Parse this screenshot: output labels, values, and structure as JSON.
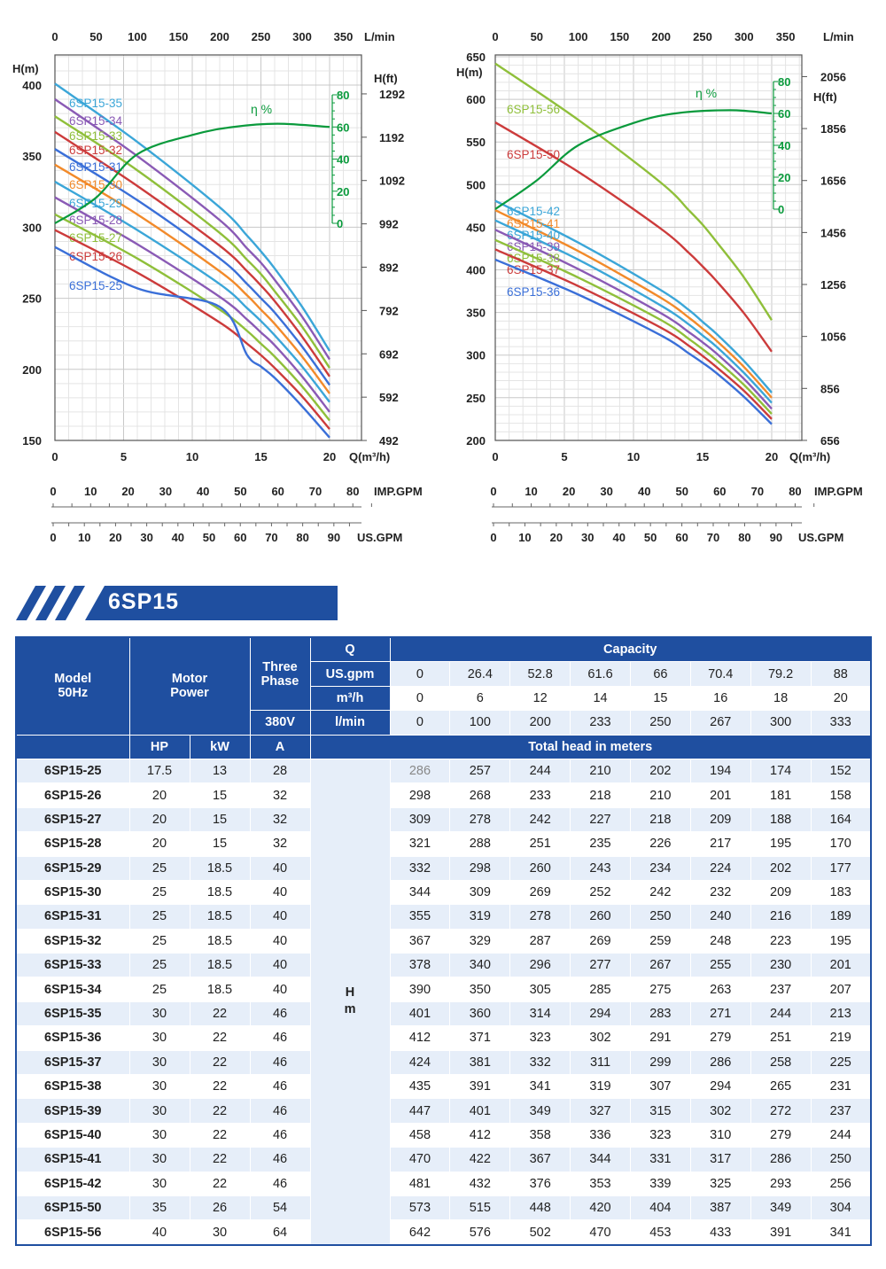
{
  "series_title": "6SP15",
  "chart_data": [
    {
      "type": "line",
      "xlabel": "Q(m³/h)",
      "ylabel": "H(m)",
      "ylabel_right": "H(ft)",
      "top_axis_label": "L/min",
      "imp_label": "IMP.GPM",
      "us_label": "US.GPM",
      "eff_label": "η %",
      "xlim": [
        0,
        22.3
      ],
      "ylim": [
        150,
        421
      ],
      "x_ticks": [
        "0",
        "5",
        "10",
        "15",
        "20"
      ],
      "y_ticks": [
        "150",
        "200",
        "250",
        "300",
        "350",
        "400"
      ],
      "y_right_ticks": [
        "492",
        "592",
        "692",
        "792",
        "892",
        "992",
        "1092",
        "1192",
        "1292"
      ],
      "top_ticks": [
        "0",
        "50",
        "100",
        "150",
        "200",
        "250",
        "300",
        "350"
      ],
      "imp_ticks": [
        "0",
        "10",
        "20",
        "30",
        "40",
        "50",
        "60",
        "70",
        "80"
      ],
      "us_ticks": [
        "0",
        "10",
        "20",
        "30",
        "40",
        "50",
        "60",
        "70",
        "80",
        "90"
      ],
      "eff_ticks": [
        "0",
        "20",
        "40",
        "60",
        "80"
      ],
      "grid": true,
      "x": [
        0,
        6,
        12,
        14,
        15,
        16,
        18,
        20
      ],
      "series": [
        {
          "name": "6SP15-35",
          "color": "#3ba6d8",
          "values": [
            401,
            360,
            314,
            294,
            283,
            271,
            244,
            213
          ]
        },
        {
          "name": "6SP15-34",
          "color": "#8a5ab5",
          "values": [
            390,
            350,
            305,
            285,
            275,
            263,
            237,
            207
          ]
        },
        {
          "name": "6SP15-33",
          "color": "#8fbf3a",
          "values": [
            378,
            340,
            296,
            277,
            267,
            255,
            230,
            201
          ]
        },
        {
          "name": "6SP15-32",
          "color": "#cc3b3b",
          "values": [
            367,
            329,
            287,
            269,
            259,
            248,
            223,
            195
          ]
        },
        {
          "name": "6SP15-31",
          "color": "#3a6fd8",
          "values": [
            355,
            319,
            278,
            260,
            250,
            240,
            216,
            189
          ]
        },
        {
          "name": "6SP15-30",
          "color": "#f28a2a",
          "values": [
            344,
            309,
            269,
            252,
            242,
            232,
            209,
            183
          ]
        },
        {
          "name": "6SP15-29",
          "color": "#3ba6d8",
          "values": [
            332,
            298,
            260,
            243,
            234,
            224,
            202,
            177
          ]
        },
        {
          "name": "6SP15-28",
          "color": "#8a5ab5",
          "values": [
            321,
            288,
            251,
            235,
            226,
            217,
            195,
            170
          ]
        },
        {
          "name": "6SP15-27",
          "color": "#8fbf3a",
          "values": [
            309,
            278,
            242,
            227,
            218,
            209,
            188,
            164
          ]
        },
        {
          "name": "6SP15-26",
          "color": "#cc3b3b",
          "values": [
            298,
            268,
            233,
            218,
            210,
            201,
            181,
            158
          ]
        },
        {
          "name": "6SP15-25",
          "color": "#3a6fd8",
          "values": [
            286,
            257,
            244,
            210,
            202,
            194,
            174,
            152
          ]
        }
      ],
      "efficiency": {
        "color": "#0a9a3c",
        "x": [
          0,
          3,
          6,
          10,
          13,
          16.2,
          20
        ],
        "values": [
          0,
          16,
          43,
          55,
          60,
          62,
          60
        ]
      }
    },
    {
      "type": "line",
      "xlabel": "Q(m³/h)",
      "ylabel": "H(m)",
      "ylabel_right": "H(ft)",
      "top_axis_label": "L/min",
      "imp_label": "IMP.GPM",
      "us_label": "US.GPM",
      "eff_label": "η %",
      "xlim": [
        0,
        22.3
      ],
      "ylim": [
        200,
        650
      ],
      "x_ticks": [
        "0",
        "5",
        "10",
        "15",
        "20"
      ],
      "y_ticks": [
        "200",
        "250",
        "300",
        "350",
        "400",
        "450",
        "500",
        "550",
        "600",
        "650"
      ],
      "y_right_ticks": [
        "656",
        "856",
        "1056",
        "1256",
        "1456",
        "1656",
        "1856",
        "2056"
      ],
      "top_ticks": [
        "0",
        "50",
        "100",
        "150",
        "200",
        "250",
        "300",
        "350"
      ],
      "imp_ticks": [
        "0",
        "10",
        "20",
        "30",
        "40",
        "50",
        "60",
        "70",
        "80"
      ],
      "us_ticks": [
        "0",
        "10",
        "20",
        "30",
        "40",
        "50",
        "60",
        "70",
        "80",
        "90"
      ],
      "eff_ticks": [
        "0",
        "20",
        "40",
        "60",
        "80"
      ],
      "grid": true,
      "x": [
        0,
        6,
        12,
        14,
        15,
        16,
        18,
        20
      ],
      "series": [
        {
          "name": "6SP15-56",
          "color": "#8fbf3a",
          "values": [
            642,
            576,
            502,
            470,
            453,
            433,
            391,
            341
          ]
        },
        {
          "name": "6SP15-50",
          "color": "#cc3b3b",
          "values": [
            573,
            515,
            448,
            420,
            404,
            387,
            349,
            304
          ]
        },
        {
          "name": "6SP15-42",
          "color": "#3ba6d8",
          "values": [
            481,
            432,
            376,
            353,
            339,
            325,
            293,
            256
          ]
        },
        {
          "name": "6SP15-41",
          "color": "#f28a2a",
          "values": [
            470,
            422,
            367,
            344,
            331,
            317,
            286,
            250
          ]
        },
        {
          "name": "6SP15-40",
          "color": "#3ba6d8",
          "values": [
            458,
            412,
            358,
            336,
            323,
            310,
            279,
            244
          ]
        },
        {
          "name": "6SP15-39",
          "color": "#8a5ab5",
          "values": [
            447,
            401,
            349,
            327,
            315,
            302,
            272,
            237
          ]
        },
        {
          "name": "6SP15-38",
          "color": "#8fbf3a",
          "values": [
            435,
            391,
            341,
            319,
            307,
            294,
            265,
            231
          ]
        },
        {
          "name": "6SP15-37",
          "color": "#cc3b3b",
          "values": [
            424,
            381,
            332,
            311,
            299,
            286,
            258,
            225
          ]
        },
        {
          "name": "6SP15-36",
          "color": "#3a6fd8",
          "values": [
            412,
            371,
            323,
            302,
            291,
            279,
            251,
            219
          ]
        }
      ],
      "efficiency": {
        "color": "#0a9a3c",
        "x": [
          0,
          3,
          6,
          10,
          13,
          17,
          20
        ],
        "values": [
          0,
          18,
          40,
          54,
          60,
          62,
          60
        ]
      }
    }
  ],
  "table": {
    "brand_color": "#1f4fa0",
    "model_header": [
      "Model",
      "50Hz"
    ],
    "motor_header": [
      "Motor",
      "Power"
    ],
    "phase_header": [
      "Three",
      "Phase"
    ],
    "q_label": "Q",
    "capacity_label": "Capacity",
    "voltage": "380V",
    "units": [
      "US.gpm",
      "m³/h",
      "l/min"
    ],
    "flow_rows": [
      [
        "0",
        "26.4",
        "52.8",
        "61.6",
        "66",
        "70.4",
        "79.2",
        "88"
      ],
      [
        "0",
        "6",
        "12",
        "14",
        "15",
        "16",
        "18",
        "20"
      ],
      [
        "0",
        "100",
        "200",
        "233",
        "250",
        "267",
        "300",
        "333"
      ]
    ],
    "sub_headers": [
      "HP",
      "kW",
      "A"
    ],
    "head_label": "Total head in meters",
    "h_label": [
      "H",
      "m"
    ],
    "rows": [
      {
        "model": "6SP15-25",
        "hp": "17.5",
        "kw": "13",
        "a": "28",
        "h": [
          "286",
          "257",
          "244",
          "210",
          "202",
          "194",
          "174",
          "152"
        ]
      },
      {
        "model": "6SP15-26",
        "hp": "20",
        "kw": "15",
        "a": "32",
        "h": [
          "298",
          "268",
          "233",
          "218",
          "210",
          "201",
          "181",
          "158"
        ]
      },
      {
        "model": "6SP15-27",
        "hp": "20",
        "kw": "15",
        "a": "32",
        "h": [
          "309",
          "278",
          "242",
          "227",
          "218",
          "209",
          "188",
          "164"
        ]
      },
      {
        "model": "6SP15-28",
        "hp": "20",
        "kw": "15",
        "a": "32",
        "h": [
          "321",
          "288",
          "251",
          "235",
          "226",
          "217",
          "195",
          "170"
        ]
      },
      {
        "model": "6SP15-29",
        "hp": "25",
        "kw": "18.5",
        "a": "40",
        "h": [
          "332",
          "298",
          "260",
          "243",
          "234",
          "224",
          "202",
          "177"
        ]
      },
      {
        "model": "6SP15-30",
        "hp": "25",
        "kw": "18.5",
        "a": "40",
        "h": [
          "344",
          "309",
          "269",
          "252",
          "242",
          "232",
          "209",
          "183"
        ]
      },
      {
        "model": "6SP15-31",
        "hp": "25",
        "kw": "18.5",
        "a": "40",
        "h": [
          "355",
          "319",
          "278",
          "260",
          "250",
          "240",
          "216",
          "189"
        ]
      },
      {
        "model": "6SP15-32",
        "hp": "25",
        "kw": "18.5",
        "a": "40",
        "h": [
          "367",
          "329",
          "287",
          "269",
          "259",
          "248",
          "223",
          "195"
        ]
      },
      {
        "model": "6SP15-33",
        "hp": "25",
        "kw": "18.5",
        "a": "40",
        "h": [
          "378",
          "340",
          "296",
          "277",
          "267",
          "255",
          "230",
          "201"
        ]
      },
      {
        "model": "6SP15-34",
        "hp": "25",
        "kw": "18.5",
        "a": "40",
        "h": [
          "390",
          "350",
          "305",
          "285",
          "275",
          "263",
          "237",
          "207"
        ]
      },
      {
        "model": "6SP15-35",
        "hp": "30",
        "kw": "22",
        "a": "46",
        "h": [
          "401",
          "360",
          "314",
          "294",
          "283",
          "271",
          "244",
          "213"
        ]
      },
      {
        "model": "6SP15-36",
        "hp": "30",
        "kw": "22",
        "a": "46",
        "h": [
          "412",
          "371",
          "323",
          "302",
          "291",
          "279",
          "251",
          "219"
        ]
      },
      {
        "model": "6SP15-37",
        "hp": "30",
        "kw": "22",
        "a": "46",
        "h": [
          "424",
          "381",
          "332",
          "311",
          "299",
          "286",
          "258",
          "225"
        ]
      },
      {
        "model": "6SP15-38",
        "hp": "30",
        "kw": "22",
        "a": "46",
        "h": [
          "435",
          "391",
          "341",
          "319",
          "307",
          "294",
          "265",
          "231"
        ]
      },
      {
        "model": "6SP15-39",
        "hp": "30",
        "kw": "22",
        "a": "46",
        "h": [
          "447",
          "401",
          "349",
          "327",
          "315",
          "302",
          "272",
          "237"
        ]
      },
      {
        "model": "6SP15-40",
        "hp": "30",
        "kw": "22",
        "a": "46",
        "h": [
          "458",
          "412",
          "358",
          "336",
          "323",
          "310",
          "279",
          "244"
        ]
      },
      {
        "model": "6SP15-41",
        "hp": "30",
        "kw": "22",
        "a": "46",
        "h": [
          "470",
          "422",
          "367",
          "344",
          "331",
          "317",
          "286",
          "250"
        ]
      },
      {
        "model": "6SP15-42",
        "hp": "30",
        "kw": "22",
        "a": "46",
        "h": [
          "481",
          "432",
          "376",
          "353",
          "339",
          "325",
          "293",
          "256"
        ]
      },
      {
        "model": "6SP15-50",
        "hp": "35",
        "kw": "26",
        "a": "54",
        "h": [
          "573",
          "515",
          "448",
          "420",
          "404",
          "387",
          "349",
          "304"
        ]
      },
      {
        "model": "6SP15-56",
        "hp": "40",
        "kw": "30",
        "a": "64",
        "h": [
          "642",
          "576",
          "502",
          "470",
          "453",
          "433",
          "391",
          "341"
        ]
      }
    ]
  }
}
